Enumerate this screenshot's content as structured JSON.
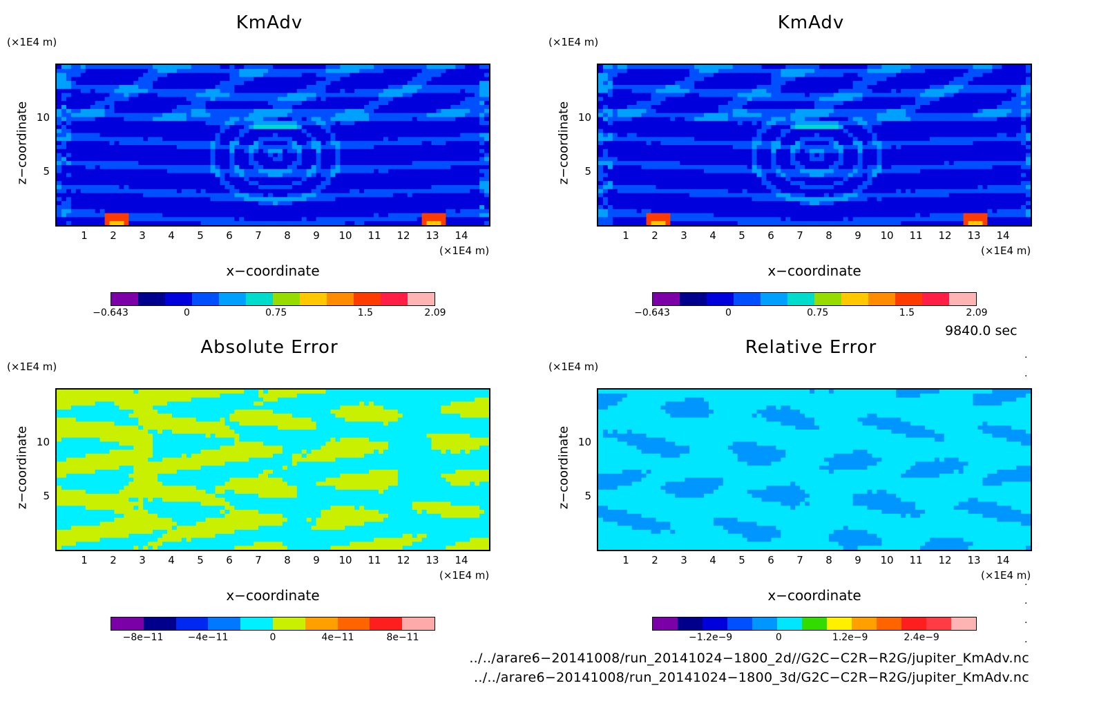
{
  "chart_data": [
    {
      "type": "heatmap",
      "title": "KmAdv",
      "xlabel": "x−coordinate",
      "ylabel": "z−coordinate",
      "x_unit": "(×1E4 m)",
      "y_unit": "(×1E4 m)",
      "x_ticks": [
        "1",
        "2",
        "3",
        "4",
        "5",
        "6",
        "7",
        "8",
        "9",
        "10",
        "11",
        "12",
        "13",
        "14"
      ],
      "y_ticks": [
        "5",
        "10"
      ],
      "xlim": [
        0,
        15
      ],
      "ylim": [
        0,
        15
      ],
      "colorbar_colors": [
        "#7b00a8",
        "#00008c",
        "#0000dc",
        "#0050ff",
        "#00a0ff",
        "#00dccc",
        "#96dc00",
        "#ffc800",
        "#ff8c00",
        "#ff3c00",
        "#ff1e46",
        "#ffb4b4"
      ],
      "colorbar_labels": [
        {
          "value": "−0.643",
          "pos": 0.0
        },
        {
          "value": "0",
          "pos": 0.235
        },
        {
          "value": "0.75",
          "pos": 0.51
        },
        {
          "value": "1.5",
          "pos": 0.785
        },
        {
          "value": "2.09",
          "pos": 1.0
        }
      ],
      "field_style": "kmadv"
    },
    {
      "type": "heatmap",
      "title": "KmAdv",
      "xlabel": "x−coordinate",
      "ylabel": "z−coordinate",
      "x_unit": "(×1E4 m)",
      "y_unit": "(×1E4 m)",
      "x_ticks": [
        "1",
        "2",
        "3",
        "4",
        "5",
        "6",
        "7",
        "8",
        "9",
        "10",
        "11",
        "12",
        "13",
        "14"
      ],
      "y_ticks": [
        "5",
        "10"
      ],
      "xlim": [
        0,
        15
      ],
      "ylim": [
        0,
        15
      ],
      "colorbar_colors": [
        "#7b00a8",
        "#00008c",
        "#0000dc",
        "#0050ff",
        "#00a0ff",
        "#00dccc",
        "#96dc00",
        "#ffc800",
        "#ff8c00",
        "#ff3c00",
        "#ff1e46",
        "#ffb4b4"
      ],
      "colorbar_labels": [
        {
          "value": "−0.643",
          "pos": 0.0
        },
        {
          "value": "0",
          "pos": 0.235
        },
        {
          "value": "0.75",
          "pos": 0.51
        },
        {
          "value": "1.5",
          "pos": 0.785
        },
        {
          "value": "2.09",
          "pos": 1.0
        }
      ],
      "field_style": "kmadv"
    },
    {
      "type": "heatmap",
      "title": "Absolute Error",
      "xlabel": "x−coordinate",
      "ylabel": "z−coordinate",
      "x_unit": "(×1E4 m)",
      "y_unit": "(×1E4 m)",
      "x_ticks": [
        "1",
        "2",
        "3",
        "4",
        "5",
        "6",
        "7",
        "8",
        "9",
        "10",
        "11",
        "12",
        "13",
        "14"
      ],
      "y_ticks": [
        "5",
        "10"
      ],
      "xlim": [
        0,
        15
      ],
      "ylim": [
        0,
        15
      ],
      "colorbar_colors": [
        "#7b00a8",
        "#00008c",
        "#0028f0",
        "#0078ff",
        "#00f0ff",
        "#c8f000",
        "#ffa000",
        "#ff6400",
        "#ff1e1e",
        "#ffaaaa"
      ],
      "colorbar_labels": [
        {
          "value": "−8e−11",
          "pos": 0.1
        },
        {
          "value": "−4e−11",
          "pos": 0.3
        },
        {
          "value": "0",
          "pos": 0.5
        },
        {
          "value": "4e−11",
          "pos": 0.7
        },
        {
          "value": "8e−11",
          "pos": 0.9
        }
      ],
      "field_style": "abs"
    },
    {
      "type": "heatmap",
      "title": "Relative Error",
      "xlabel": "x−coordinate",
      "ylabel": "z−coordinate",
      "x_unit": "(×1E4 m)",
      "y_unit": "(×1E4 m)",
      "x_ticks": [
        "1",
        "2",
        "3",
        "4",
        "5",
        "6",
        "7",
        "8",
        "9",
        "10",
        "11",
        "12",
        "13",
        "14"
      ],
      "y_ticks": [
        "5",
        "10"
      ],
      "xlim": [
        0,
        15
      ],
      "ylim": [
        0,
        15
      ],
      "colorbar_colors": [
        "#7b00a8",
        "#00008c",
        "#0000dc",
        "#0050ff",
        "#0096ff",
        "#00e6ff",
        "#32dc00",
        "#fff000",
        "#ffa000",
        "#ff6400",
        "#ff1e1e",
        "#ff3c46",
        "#ffb4b4"
      ],
      "colorbar_labels": [
        {
          "value": "−1.2e−9",
          "pos": 0.18
        },
        {
          "value": "0",
          "pos": 0.39
        },
        {
          "value": "1.2e−9",
          "pos": 0.61
        },
        {
          "value": "2.4e−9",
          "pos": 0.83
        }
      ],
      "field_style": "rel"
    }
  ],
  "timestamp": "9840.0 sec",
  "files": [
    "../../arare6−20141008/run_20141024−1800_2d//G2C−C2R−R2G/jupiter_KmAdv.nc",
    "../../arare6−20141008/run_20141024−1800_3d/G2C−C2R−R2G/jupiter_KmAdv.nc"
  ]
}
